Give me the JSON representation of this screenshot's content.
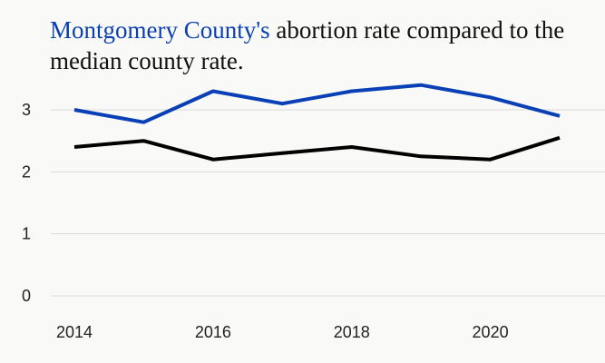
{
  "chart_data": {
    "type": "line",
    "title": {
      "highlight": "Montgomery County's",
      "rest": " abortion rate compared to the median county rate."
    },
    "xlabel": "",
    "ylabel": "",
    "x": [
      2014,
      2015,
      2016,
      2017,
      2018,
      2019,
      2020,
      2021
    ],
    "xticks": [
      "2014",
      "2016",
      "2018",
      "2020"
    ],
    "yticks": [
      "0",
      "1",
      "2",
      "3"
    ],
    "xlim": [
      2014,
      2021
    ],
    "ylim": [
      0,
      3
    ],
    "grid": "horizontal",
    "series": [
      {
        "color": "#0a40b5",
        "values": [
          3.0,
          2.8,
          3.3,
          3.1,
          3.3,
          3.4,
          3.2,
          2.9
        ]
      },
      {
        "color": "#000000",
        "values": [
          2.4,
          2.5,
          2.2,
          2.3,
          2.4,
          2.25,
          2.2,
          2.55
        ]
      }
    ]
  }
}
